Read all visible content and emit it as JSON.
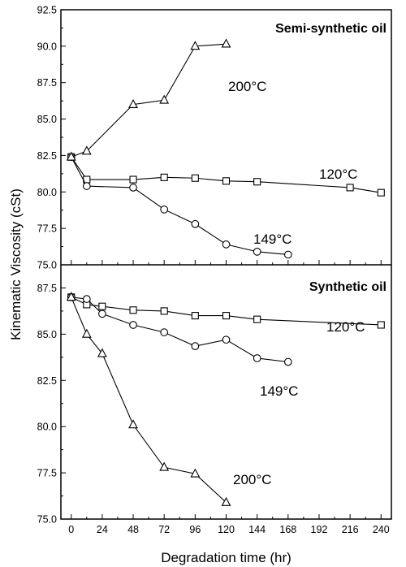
{
  "chart_data": {
    "type": "line",
    "xlabel": "Degradation time (hr)",
    "ylabel": "Kinematic Viscosity (cSt)",
    "xlim": [
      -8,
      248
    ],
    "xticks": [
      0,
      24,
      48,
      72,
      96,
      120,
      144,
      168,
      192,
      216,
      240
    ],
    "grid": false,
    "panels": [
      {
        "title": "Semi-synthetic oil",
        "ylim": [
          75.0,
          92.5
        ],
        "yticks": [
          "75.0",
          "77.5",
          "80.0",
          "82.5",
          "85.0",
          "87.5",
          "90.0",
          "92.5"
        ],
        "series": [
          {
            "name": "120°C",
            "marker": "square",
            "x": [
              0,
              12,
              48,
              72,
              96,
              120,
              144,
              216,
              240
            ],
            "y": [
              82.4,
              80.85,
              80.85,
              81.0,
              80.95,
              80.75,
              80.7,
              80.3,
              79.95
            ]
          },
          {
            "name": "149°C",
            "marker": "circle",
            "x": [
              0,
              12,
              48,
              72,
              96,
              120,
              144,
              168
            ],
            "y": [
              82.4,
              80.4,
              80.3,
              78.8,
              77.8,
              76.4,
              75.9,
              75.7
            ]
          },
          {
            "name": "200°C",
            "marker": "triangle",
            "x": [
              0,
              12,
              48,
              72,
              96,
              120
            ],
            "y": [
              82.4,
              82.8,
              86.0,
              86.3,
              90.0,
              90.15
            ]
          }
        ]
      },
      {
        "title": "Synthetic oil",
        "ylim": [
          75.0,
          88.75
        ],
        "yticks": [
          "75.0",
          "77.5",
          "80.0",
          "82.5",
          "85.0",
          "87.5"
        ],
        "series": [
          {
            "name": "120°C",
            "marker": "square",
            "x": [
              0,
              12,
              24,
              48,
              72,
              96,
              120,
              144,
              240
            ],
            "y": [
              87.0,
              86.6,
              86.5,
              86.3,
              86.25,
              86.0,
              86.0,
              85.8,
              85.5
            ]
          },
          {
            "name": "149°C",
            "marker": "circle",
            "x": [
              0,
              12,
              24,
              48,
              72,
              96,
              120,
              144,
              168
            ],
            "y": [
              87.0,
              86.9,
              86.1,
              85.5,
              85.1,
              84.35,
              84.7,
              83.7,
              83.5
            ]
          },
          {
            "name": "200°C",
            "marker": "triangle",
            "x": [
              0,
              12,
              24,
              48,
              72,
              96,
              120
            ],
            "y": [
              87.0,
              85.0,
              83.95,
              80.1,
              77.8,
              77.45,
              75.9
            ]
          }
        ]
      }
    ]
  }
}
